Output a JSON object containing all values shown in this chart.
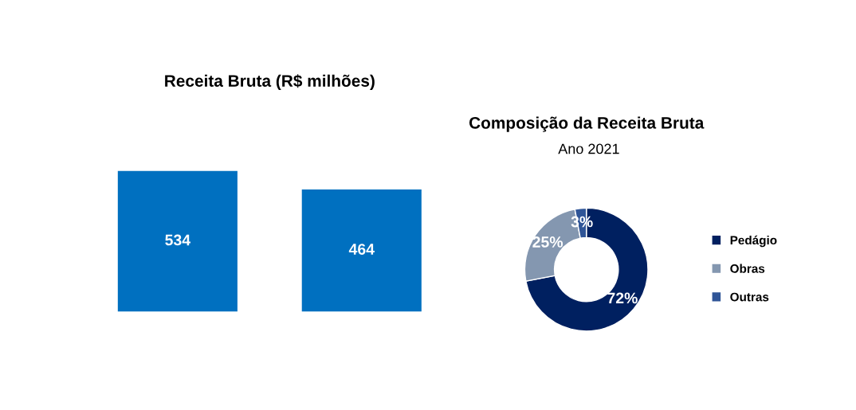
{
  "chart_data": [
    {
      "type": "bar",
      "title": "Receita Bruta (R$ milhões)",
      "categories": [
        null,
        null
      ],
      "values": [
        534,
        464
      ],
      "color": "#0070c0",
      "data_labels": true
    },
    {
      "type": "donut",
      "title": "Composição da Receita Bruta",
      "subtitle": "Ano 2021",
      "categories": [
        "Pedágio",
        "Obras",
        "Outras"
      ],
      "values": [
        72,
        25,
        3
      ],
      "colors": [
        "#002060",
        "#8497b0",
        "#2f5597"
      ],
      "value_labels": [
        "72%",
        "25%",
        "3%"
      ],
      "legend": "right"
    }
  ]
}
